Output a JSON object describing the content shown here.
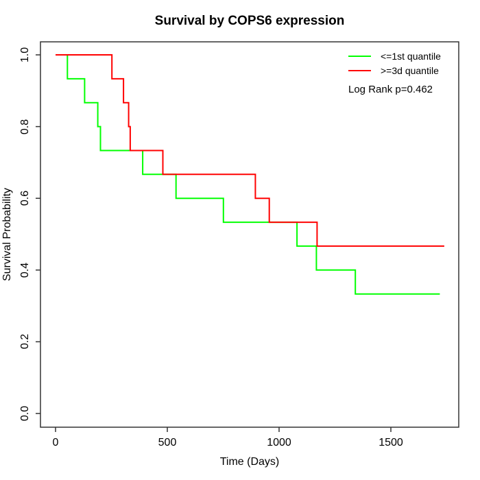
{
  "title": "Survival by COPS6 expression",
  "x_axis": {
    "label": "Time (Days)",
    "ticks": [
      "0",
      "500",
      "1000",
      "1500"
    ],
    "tick_values": [
      0,
      500,
      1000,
      1500
    ]
  },
  "y_axis": {
    "label": "Survival Probability",
    "ticks": [
      "0.0",
      "0.2",
      "0.4",
      "0.6",
      "0.8",
      "1.0"
    ],
    "tick_values": [
      0,
      0.2,
      0.4,
      0.6,
      0.8,
      1.0
    ]
  },
  "legend": {
    "items": [
      {
        "label": "<=1st quantile",
        "color": "#00ff00"
      },
      {
        "label": ">=3d quantile",
        "color": "#ff0000"
      }
    ],
    "note": "Log Rank p=0.462"
  },
  "chart_data": {
    "type": "line",
    "subtype": "kaplan-meier-step",
    "title": "Survival by COPS6 expression",
    "xlabel": "Time (Days)",
    "ylabel": "Survival Probability",
    "xlim": [
      -70,
      1805
    ],
    "ylim": [
      -0.04,
      1.04
    ],
    "grid": false,
    "legend_position": "top-right",
    "annotation": "Log Rank p=0.462",
    "series": [
      {
        "name": "<=1st quantile",
        "color": "#00ff00",
        "steps": [
          [
            0,
            1.0
          ],
          [
            53,
            0.9333
          ],
          [
            130,
            0.8667
          ],
          [
            189,
            0.8
          ],
          [
            201,
            0.7333
          ],
          [
            390,
            0.6667
          ],
          [
            539,
            0.6
          ],
          [
            751,
            0.5333
          ],
          [
            1080,
            0.4667
          ],
          [
            1167,
            0.4
          ],
          [
            1341,
            0.3333
          ]
        ],
        "end_time": 1719
      },
      {
        "name": ">=3d quantile",
        "color": "#ff0000",
        "steps": [
          [
            0,
            1.0
          ],
          [
            252,
            0.9333
          ],
          [
            304,
            0.8667
          ],
          [
            327,
            0.8
          ],
          [
            334,
            0.7333
          ],
          [
            480,
            0.6667
          ],
          [
            894,
            0.6
          ],
          [
            956,
            0.5333
          ],
          [
            1170,
            0.4667
          ]
        ],
        "end_time": 1739
      }
    ]
  }
}
